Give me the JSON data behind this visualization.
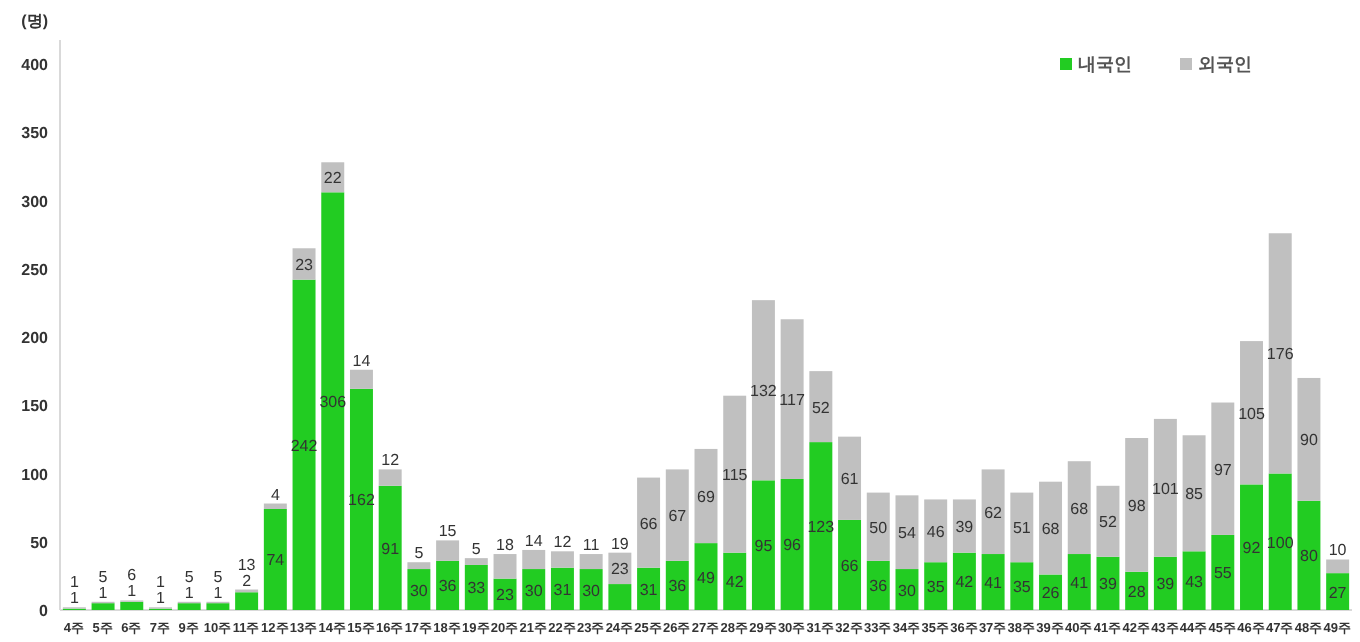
{
  "chart_data": {
    "type": "bar",
    "stacked": true,
    "ylabel": "(명)",
    "categories": [
      "4주",
      "5주",
      "6주",
      "7주",
      "9주",
      "10주",
      "11주",
      "12주",
      "13주",
      "14주",
      "15주",
      "16주",
      "17주",
      "18주",
      "19주",
      "20주",
      "21주",
      "22주",
      "23주",
      "24주",
      "25주",
      "26주",
      "27주",
      "28주",
      "29주",
      "30주",
      "31주",
      "32주",
      "33주",
      "34주",
      "35주",
      "36주",
      "37주",
      "38주",
      "39주",
      "40주",
      "41주",
      "42주",
      "43주",
      "44주",
      "45주",
      "46주",
      "47주",
      "48주",
      "49주"
    ],
    "series": [
      {
        "name": "내국인",
        "color": "#22cc22",
        "values": [
          1,
          5,
          6,
          1,
          5,
          5,
          13,
          74,
          242,
          306,
          162,
          91,
          30,
          36,
          33,
          23,
          30,
          31,
          30,
          19,
          31,
          36,
          49,
          42,
          95,
          96,
          123,
          66,
          36,
          30,
          35,
          42,
          41,
          35,
          26,
          41,
          39,
          28,
          39,
          43,
          55,
          92,
          100,
          80,
          27
        ]
      },
      {
        "name": "외국인",
        "color": "#c0c0c0",
        "values": [
          1,
          1,
          1,
          1,
          1,
          1,
          2,
          4,
          23,
          22,
          14,
          12,
          5,
          15,
          5,
          18,
          14,
          12,
          11,
          23,
          66,
          67,
          69,
          115,
          132,
          117,
          52,
          61,
          50,
          54,
          46,
          39,
          62,
          51,
          68,
          68,
          52,
          98,
          101,
          85,
          97,
          105,
          176,
          90,
          10
        ]
      }
    ],
    "ylim": [
      0,
      400
    ],
    "yticks": [
      0,
      50,
      100,
      150,
      200,
      250,
      300,
      350,
      400
    ],
    "grid": false,
    "legend": "top right",
    "data_labels": true
  }
}
